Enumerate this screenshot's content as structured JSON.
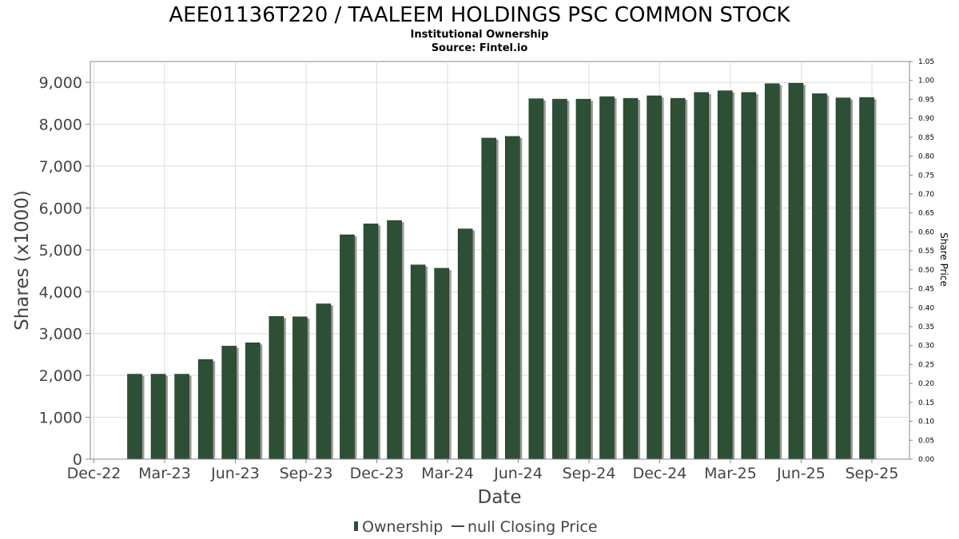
{
  "chart_data": {
    "type": "bar",
    "title": "AEE01136T220 / TAALEEM HOLDINGS PSC COMMON STOCK",
    "subtitle_lines": [
      "Institutional Ownership",
      "Source: Fintel.io"
    ],
    "xlabel": "Date",
    "ylabel": "Shares (x1000)",
    "y2label": "Share Price",
    "ylim": [
      0,
      9500
    ],
    "y_ticks": [
      "0",
      "1,000",
      "2,000",
      "3,000",
      "4,000",
      "5,000",
      "6,000",
      "7,000",
      "8,000",
      "9,000"
    ],
    "y2lim": [
      0,
      1.05
    ],
    "y2_ticks": [
      "0.00",
      "0.05",
      "0.10",
      "0.15",
      "0.20",
      "0.25",
      "0.30",
      "0.35",
      "0.40",
      "0.45",
      "0.50",
      "0.55",
      "0.60",
      "0.65",
      "0.70",
      "0.75",
      "0.80",
      "0.85",
      "0.90",
      "0.95",
      "1.00",
      "1.05"
    ],
    "x_ticks": [
      "Dec-22",
      "Mar-23",
      "Jun-23",
      "Sep-23",
      "Dec-23",
      "Mar-24",
      "Jun-24",
      "Sep-24",
      "Dec-24",
      "Mar-25",
      "Jun-25",
      "Sep-25"
    ],
    "grid": true,
    "legend_position": "bottom",
    "series": [
      {
        "name": "Ownership",
        "color": "#2d4f36",
        "values": [
          2030,
          2030,
          2030,
          2380,
          2700,
          2780,
          3410,
          3400,
          3710,
          5360,
          5620,
          5700,
          4640,
          4560,
          5500,
          7670,
          7710,
          8610,
          8600,
          8600,
          8660,
          8620,
          8680,
          8620,
          8760,
          8800,
          8760,
          8970,
          8980,
          8730,
          8630,
          8640
        ]
      }
    ],
    "legend": [
      "Ownership",
      "null Closing Price"
    ]
  }
}
